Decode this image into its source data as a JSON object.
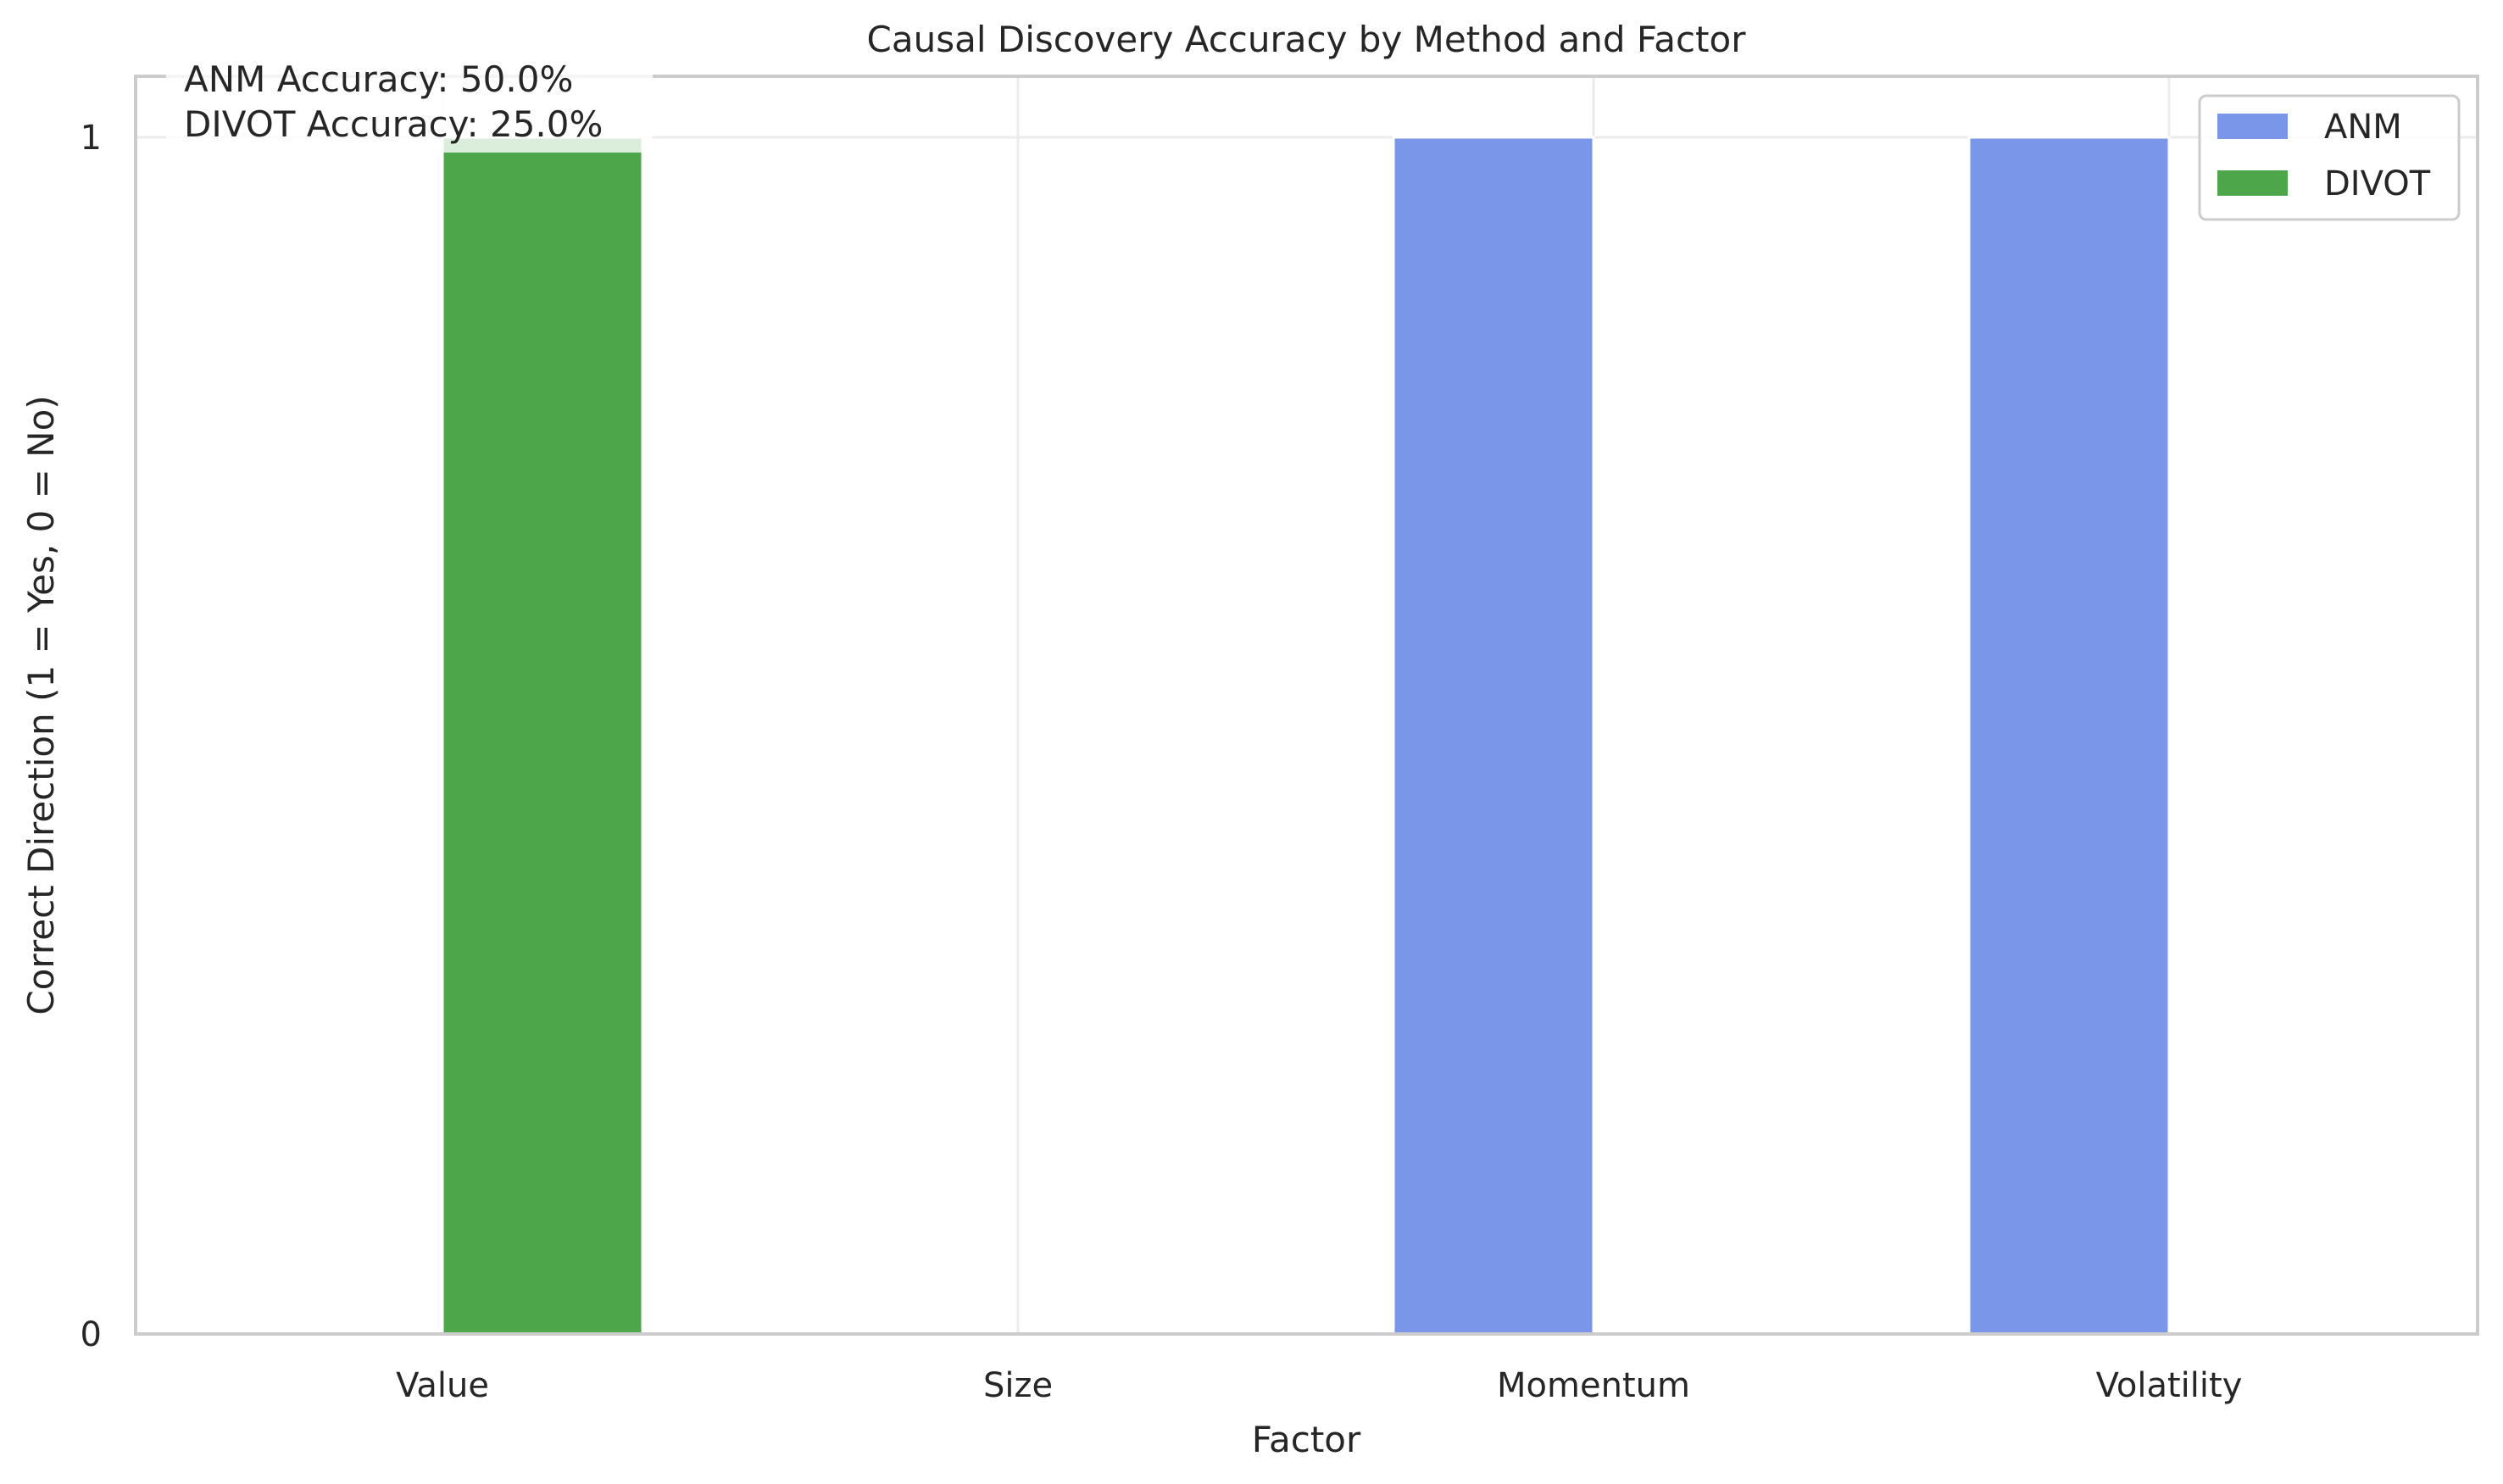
{
  "chart_data": {
    "type": "bar",
    "title": "Causal Discovery Accuracy by Method and Factor",
    "xlabel": "Factor",
    "ylabel": "Correct Direction (1 = Yes, 0 = No)",
    "categories": [
      "Value",
      "Size",
      "Momentum",
      "Volatility"
    ],
    "series": [
      {
        "name": "ANM",
        "values": [
          0,
          0,
          1,
          1
        ],
        "color": "#7a96e8"
      },
      {
        "name": "DIVOT",
        "values": [
          1,
          0,
          0,
          0
        ],
        "color": "#4ea64b"
      }
    ],
    "ylim": [
      0,
      1
    ],
    "yticks": [
      0,
      1
    ],
    "grid": true,
    "legend": "top-right",
    "annotation": [
      "ANM Accuracy: 50.0%",
      "DIVOT Accuracy: 25.0%"
    ]
  }
}
